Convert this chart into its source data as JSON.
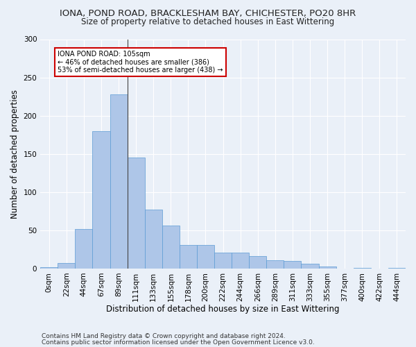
{
  "title1": "IONA, POND ROAD, BRACKLESHAM BAY, CHICHESTER, PO20 8HR",
  "title2": "Size of property relative to detached houses in East Wittering",
  "xlabel": "Distribution of detached houses by size in East Wittering",
  "ylabel": "Number of detached properties",
  "footnote1": "Contains HM Land Registry data © Crown copyright and database right 2024.",
  "footnote2": "Contains public sector information licensed under the Open Government Licence v3.0.",
  "bar_values": [
    2,
    7,
    52,
    180,
    228,
    145,
    77,
    56,
    31,
    31,
    21,
    21,
    16,
    11,
    10,
    6,
    3,
    0,
    1,
    0,
    1
  ],
  "bar_color": "#aec6e8",
  "bar_edge_color": "#5b9bd5",
  "categories": [
    "0sqm",
    "22sqm",
    "44sqm",
    "67sqm",
    "89sqm",
    "111sqm",
    "133sqm",
    "155sqm",
    "178sqm",
    "200sqm",
    "222sqm",
    "244sqm",
    "266sqm",
    "289sqm",
    "311sqm",
    "333sqm",
    "355sqm",
    "377sqm",
    "400sqm",
    "422sqm",
    "444sqm"
  ],
  "annotation_text": "IONA POND ROAD: 105sqm\n← 46% of detached houses are smaller (386)\n53% of semi-detached houses are larger (438) →",
  "ylim": [
    0,
    300
  ],
  "yticks": [
    0,
    50,
    100,
    150,
    200,
    250,
    300
  ],
  "bg_color": "#eaf0f8",
  "grid_color": "#ffffff",
  "annotation_box_color": "#ffffff",
  "annotation_box_edge": "#cc0000",
  "title_fontsize": 9.5,
  "subtitle_fontsize": 8.5,
  "tick_fontsize": 7.5,
  "label_fontsize": 8.5,
  "footnote_fontsize": 6.5
}
